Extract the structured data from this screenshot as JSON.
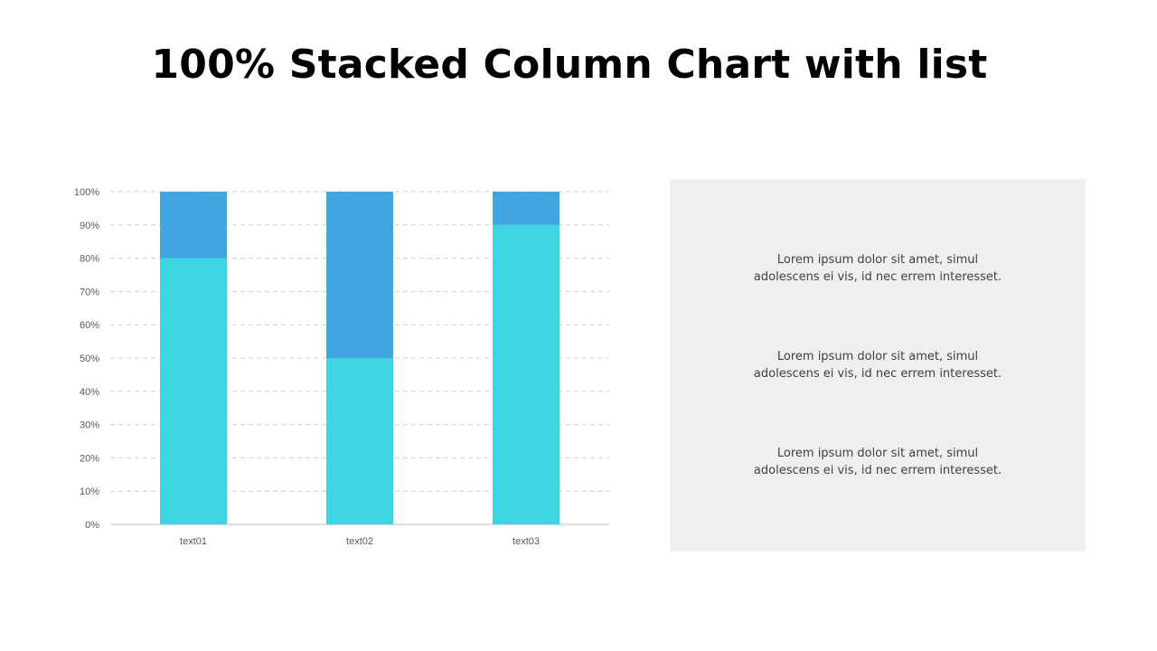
{
  "title": "100% Stacked Column Chart with list",
  "colors": {
    "series_bottom": "#3ed5e2",
    "series_top": "#41a6e0",
    "grid": "#d0d0d0",
    "axis": "#bfbfbf",
    "panel_bg": "#efefef"
  },
  "chart_data": {
    "type": "bar",
    "stacked": "percent",
    "categories": [
      "text01",
      "text02",
      "text03"
    ],
    "series": [
      {
        "values": [
          80,
          50,
          90
        ],
        "color": "#3ed5e2"
      },
      {
        "values": [
          20,
          50,
          10
        ],
        "color": "#41a6e0"
      }
    ],
    "ylim": [
      0,
      100
    ],
    "yticks": [
      "0%",
      "10%",
      "20%",
      "30%",
      "40%",
      "50%",
      "60%",
      "70%",
      "80%",
      "90%",
      "100%"
    ],
    "grid": true,
    "legend": "none"
  },
  "list": {
    "items": [
      {
        "line1": "Lorem ipsum dolor sit amet, simul",
        "line2": "adolescens ei vis, id nec errem interesset."
      },
      {
        "line1": "Lorem ipsum dolor sit amet, simul",
        "line2": "adolescens ei vis, id nec errem interesset."
      },
      {
        "line1": "Lorem ipsum dolor sit amet, simul",
        "line2": "adolescens ei vis, id nec errem interesset."
      }
    ]
  }
}
